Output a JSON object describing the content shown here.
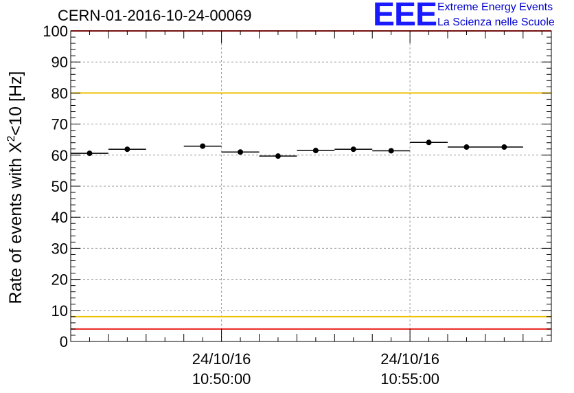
{
  "header": {
    "title": "CERN-01-2016-10-24-00069"
  },
  "logo": {
    "mark": "EEE",
    "line1": "Extreme Energy Events",
    "line2": "La Scienza nelle Scuole",
    "color": "#1a1aff"
  },
  "chart_data": {
    "type": "scatter",
    "ylabel_main": "Rate of events with X",
    "ylabel_sup": "2",
    "ylabel_tail": "<10 [Hz]",
    "ylim": [
      0,
      100
    ],
    "yticks": [
      "0",
      "10",
      "20",
      "30",
      "40",
      "50",
      "60",
      "70",
      "80",
      "90",
      "100"
    ],
    "xlim": [
      "10:46:00",
      "10:58:45"
    ],
    "xtick_labels": [
      {
        "time": "10:50:00",
        "line1": "24/10/16",
        "line2": "10:50:00"
      },
      {
        "time": "10:55:00",
        "line1": "24/10/16",
        "line2": "10:55:00"
      }
    ],
    "grid": true,
    "bin_width_seconds": 60,
    "series": [
      {
        "x": [
          "10:46:30",
          "10:47:30",
          "10:48:30",
          "10:49:30",
          "10:50:30",
          "10:51:30",
          "10:52:30",
          "10:53:30",
          "10:54:30",
          "10:55:30",
          "10:56:30",
          "10:57:30",
          "10:58:30"
        ],
        "values": [
          60.6,
          61.9,
          null,
          62.9,
          61.0,
          59.7,
          61.5,
          61.9,
          61.4,
          64.1,
          62.6,
          62.6,
          null
        ],
        "error": 0.6
      }
    ],
    "reference_lines": [
      {
        "value": 100,
        "color": "#e8201c"
      },
      {
        "value": 80,
        "color": "#f0c000"
      },
      {
        "value": 8,
        "color": "#f0c000"
      },
      {
        "value": 4,
        "color": "#e8201c"
      }
    ]
  }
}
